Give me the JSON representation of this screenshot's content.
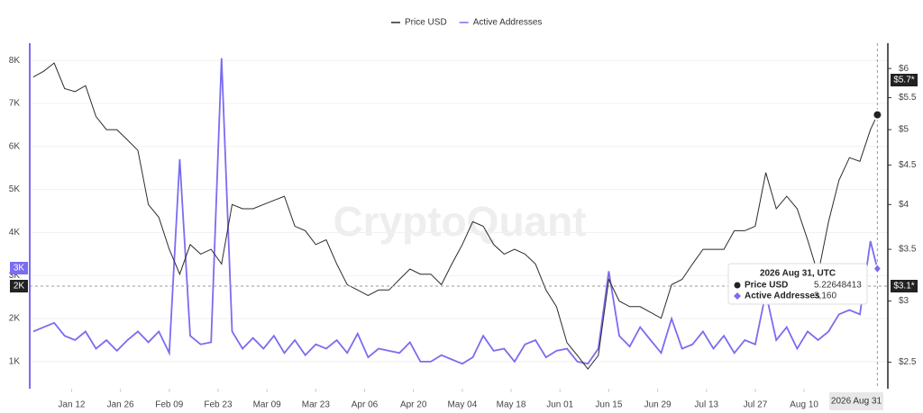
{
  "chart_data": {
    "type": "line",
    "legend": "top",
    "watermark": "CryptoQuant",
    "x": [
      "2026-01-01",
      "2026-01-04",
      "2026-01-07",
      "2026-01-10",
      "2026-01-13",
      "2026-01-16",
      "2026-01-19",
      "2026-01-22",
      "2026-01-25",
      "2026-01-28",
      "2026-01-31",
      "2026-02-03",
      "2026-02-06",
      "2026-02-09",
      "2026-02-12",
      "2026-02-15",
      "2026-02-18",
      "2026-02-21",
      "2026-02-24",
      "2026-02-27",
      "2026-03-02",
      "2026-03-05",
      "2026-03-08",
      "2026-03-11",
      "2026-03-14",
      "2026-03-17",
      "2026-03-20",
      "2026-03-23",
      "2026-03-26",
      "2026-03-29",
      "2026-04-01",
      "2026-04-04",
      "2026-04-07",
      "2026-04-10",
      "2026-04-13",
      "2026-04-16",
      "2026-04-19",
      "2026-04-22",
      "2026-04-25",
      "2026-04-28",
      "2026-05-01",
      "2026-05-04",
      "2026-05-07",
      "2026-05-10",
      "2026-05-13",
      "2026-05-16",
      "2026-05-19",
      "2026-05-22",
      "2026-05-25",
      "2026-05-28",
      "2026-05-31",
      "2026-06-03",
      "2026-06-06",
      "2026-06-09",
      "2026-06-12",
      "2026-06-15",
      "2026-06-18",
      "2026-06-21",
      "2026-06-24",
      "2026-06-27",
      "2026-06-30",
      "2026-07-03",
      "2026-07-06",
      "2026-07-09",
      "2026-07-12",
      "2026-07-15",
      "2026-07-18",
      "2026-07-21",
      "2026-07-24",
      "2026-07-27",
      "2026-07-30",
      "2026-08-02",
      "2026-08-05",
      "2026-08-08",
      "2026-08-11",
      "2026-08-14",
      "2026-08-17",
      "2026-08-20",
      "2026-08-23",
      "2026-08-26",
      "2026-08-29",
      "2026-08-31"
    ],
    "xlim": [
      "2025-12-31",
      "2026-09-03"
    ],
    "xticks": [
      {
        "value": "2026-01-12",
        "label": "Jan 12"
      },
      {
        "value": "2026-01-26",
        "label": "Jan 26"
      },
      {
        "value": "2026-02-09",
        "label": "Feb 09"
      },
      {
        "value": "2026-02-23",
        "label": "Feb 23"
      },
      {
        "value": "2026-03-09",
        "label": "Mar 09"
      },
      {
        "value": "2026-03-23",
        "label": "Mar 23"
      },
      {
        "value": "2026-04-06",
        "label": "Apr 06"
      },
      {
        "value": "2026-04-20",
        "label": "Apr 20"
      },
      {
        "value": "2026-05-04",
        "label": "May 04"
      },
      {
        "value": "2026-05-18",
        "label": "May 18"
      },
      {
        "value": "2026-06-01",
        "label": "Jun 01"
      },
      {
        "value": "2026-06-15",
        "label": "Jun 15"
      },
      {
        "value": "2026-06-29",
        "label": "Jun 29"
      },
      {
        "value": "2026-07-13",
        "label": "Jul 13"
      },
      {
        "value": "2026-07-27",
        "label": "Jul 27"
      },
      {
        "value": "2026-08-10",
        "label": "Aug 10"
      }
    ],
    "ylim": [
      370,
      8400
    ],
    "yticks": [
      {
        "value": 1000,
        "label": "1K"
      },
      {
        "value": 2000,
        "label": "2K"
      },
      {
        "value": 3000,
        "label": "3K"
      },
      {
        "value": 4000,
        "label": "4K"
      },
      {
        "value": 5000,
        "label": "5K"
      },
      {
        "value": 6000,
        "label": "6K"
      },
      {
        "value": 7000,
        "label": "7K"
      },
      {
        "value": 8000,
        "label": "8K"
      }
    ],
    "y2lim": [
      2.31,
      6.47
    ],
    "y2log": true,
    "y2ticks": [
      {
        "value": 2.5,
        "label": "$2.5"
      },
      {
        "value": 3,
        "label": "$3"
      },
      {
        "value": 3.5,
        "label": "$3.5"
      },
      {
        "value": 4,
        "label": "$4"
      },
      {
        "value": 4.5,
        "label": "$4.5"
      },
      {
        "value": 5,
        "label": "$5"
      },
      {
        "value": 5.5,
        "label": "$5.5"
      },
      {
        "value": 6,
        "label": "$6"
      }
    ],
    "grid": true,
    "series": [
      {
        "name": "Price USD",
        "color": "#2b2b2b",
        "axis": "y2",
        "values": [
          5.85,
          5.95,
          6.1,
          5.65,
          5.6,
          5.7,
          5.2,
          5.0,
          5.0,
          4.85,
          4.7,
          4.0,
          3.85,
          3.5,
          3.25,
          3.55,
          3.45,
          3.5,
          3.35,
          4.0,
          3.95,
          3.95,
          4.0,
          4.05,
          4.1,
          3.75,
          3.7,
          3.55,
          3.6,
          3.35,
          3.15,
          3.1,
          3.05,
          3.1,
          3.1,
          3.2,
          3.3,
          3.25,
          3.25,
          3.15,
          3.35,
          3.55,
          3.8,
          3.75,
          3.55,
          3.45,
          3.5,
          3.45,
          3.35,
          3.1,
          2.95,
          2.65,
          2.55,
          2.45,
          2.55,
          3.2,
          3.0,
          2.95,
          2.95,
          2.9,
          2.85,
          3.15,
          3.2,
          3.35,
          3.5,
          3.5,
          3.5,
          3.7,
          3.7,
          3.75,
          4.4,
          3.95,
          4.1,
          3.95,
          3.6,
          3.25,
          3.8,
          4.3,
          4.6,
          4.55,
          5.0,
          5.22648413
        ]
      },
      {
        "name": "Active Addresses",
        "color": "#7b6cf0",
        "values": [
          1700,
          1800,
          1900,
          1600,
          1500,
          1700,
          1300,
          1500,
          1250,
          1500,
          1700,
          1450,
          1700,
          1200,
          5700,
          1600,
          1400,
          1450,
          8050,
          1700,
          1300,
          1550,
          1300,
          1600,
          1200,
          1500,
          1150,
          1400,
          1300,
          1500,
          1200,
          1650,
          1100,
          1300,
          1250,
          1200,
          1450,
          1000,
          1000,
          1150,
          1050,
          950,
          1100,
          1600,
          1250,
          1300,
          1000,
          1400,
          1500,
          1100,
          1250,
          1300,
          1000,
          950,
          1300,
          3100,
          1600,
          1350,
          1800,
          1500,
          1200,
          2000,
          1300,
          1400,
          1700,
          1300,
          1600,
          1200,
          1500,
          1400,
          2600,
          1500,
          1800,
          1300,
          1700,
          1500,
          1700,
          2100,
          2200,
          2100,
          3800,
          3160
        ]
      }
    ],
    "tooltip": {
      "title": "2026 Aug 31, UTC",
      "items": [
        {
          "name": "Price USD",
          "value": "5.22648413"
        },
        {
          "name": "Active Addresses",
          "value": "3,160"
        }
      ]
    },
    "crosshair": {
      "x_label": "2026 Aug 31",
      "y_labels": [
        "3K",
        "2K"
      ],
      "y2_labels": [
        "$5.7*",
        "$3.1*"
      ]
    }
  }
}
